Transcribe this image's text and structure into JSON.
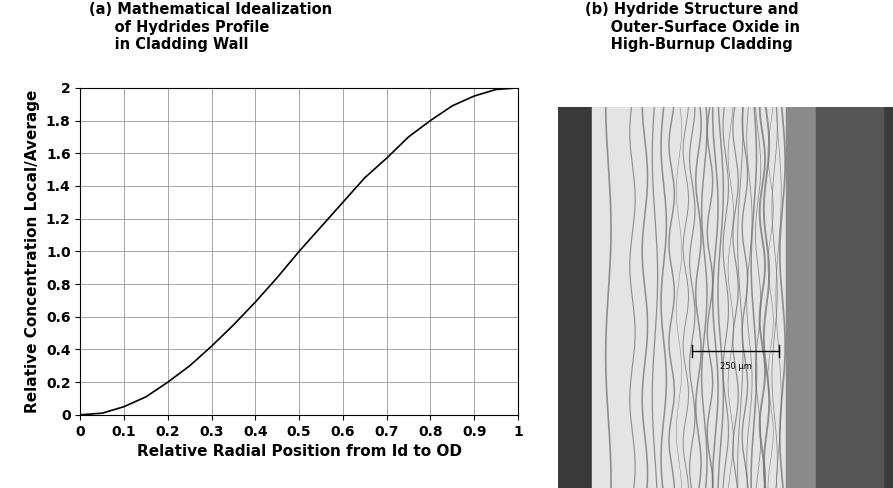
{
  "chart_data": {
    "type": "line",
    "title": "(a) Mathematical Idealization\n     of Hydrides Profile\n     in Cladding Wall",
    "x_label": "Relative Radial Position from Id to OD",
    "y_label": "Relative Concentration Local/Average",
    "x": [
      0,
      0.05,
      0.1,
      0.15,
      0.2,
      0.25,
      0.3,
      0.35,
      0.4,
      0.45,
      0.5,
      0.55,
      0.6,
      0.65,
      0.7,
      0.75,
      0.8,
      0.85,
      0.9,
      0.95,
      1.0
    ],
    "values": [
      0,
      0.01,
      0.05,
      0.11,
      0.2,
      0.3,
      0.42,
      0.55,
      0.69,
      0.84,
      1.0,
      1.15,
      1.3,
      1.45,
      1.57,
      1.7,
      1.8,
      1.89,
      1.95,
      1.99,
      2.0
    ],
    "color": "#000000",
    "xlim": [
      0,
      1
    ],
    "xticks": [
      0,
      0.1,
      0.2,
      0.3,
      0.4,
      0.5,
      0.6,
      0.7,
      0.8,
      0.9,
      1
    ],
    "ylim": [
      0,
      2
    ],
    "yticks": [
      0,
      0.2,
      0.4,
      0.6,
      0.8,
      {
        "value": 1.0,
        "label": "1.0"
      },
      1.2,
      1.4,
      1.6,
      1.8,
      2
    ],
    "grid": true
  },
  "image_panel": {
    "title": "(b) Hydride Structure and\n     Outer-Surface Oxide in\n     High-Burnup Cladding",
    "scale_bar_label": "250 µm"
  }
}
